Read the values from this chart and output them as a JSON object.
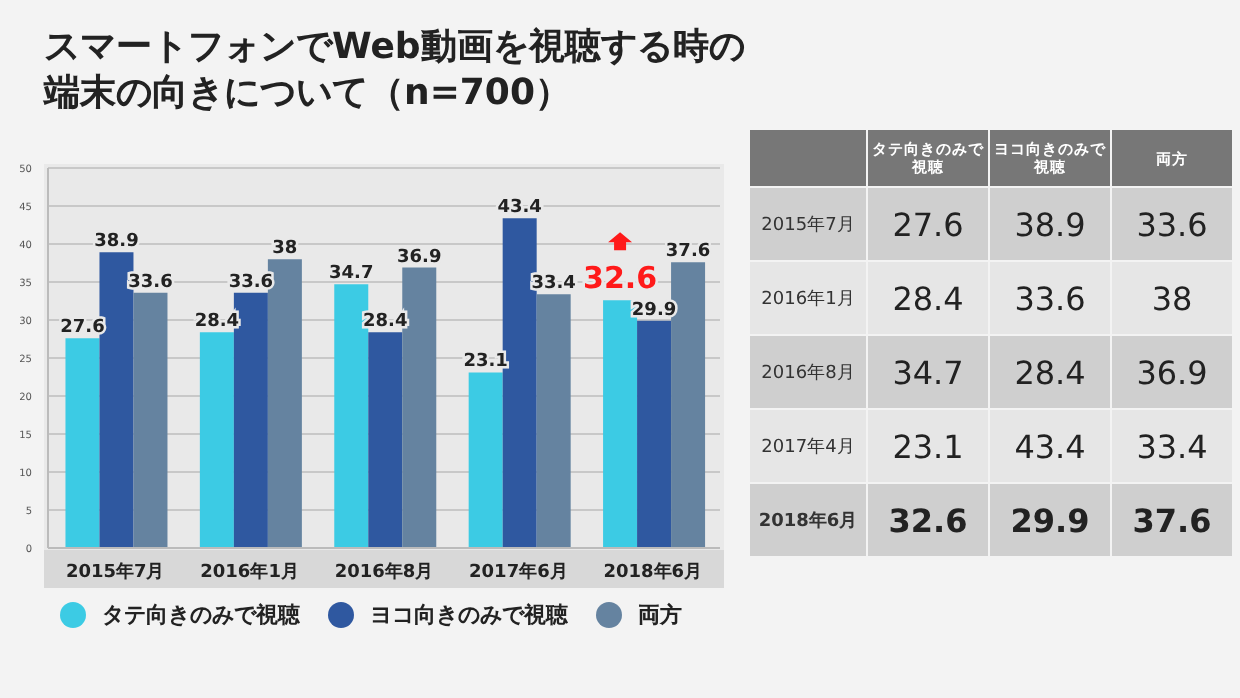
{
  "chart_data": [
    {
      "type": "bar",
      "title": "スマートフォンでWeb動画を視聴する時の端末の向きについて（n=700）",
      "categories": [
        "2015年7月",
        "2016年1月",
        "2016年8月",
        "2017年6月",
        "2018年6月"
      ],
      "series": [
        {
          "name": "タテ向きのみで視聴",
          "color": "#3ccbe4",
          "values": [
            27.6,
            28.4,
            34.7,
            23.1,
            32.6
          ],
          "value_labels": [
            "27.6",
            "28.4",
            "34.7",
            "23.1",
            null
          ]
        },
        {
          "name": "ヨコ向きのみで視聴",
          "color": "#2f58a0",
          "values": [
            38.9,
            33.6,
            28.4,
            43.4,
            29.9
          ],
          "value_labels": [
            "38.9",
            "33.6",
            "28.4",
            "43.4",
            "29.9"
          ]
        },
        {
          "name": "両方",
          "color": "#6583a0",
          "values": [
            33.6,
            38,
            36.9,
            33.4,
            37.6
          ],
          "value_labels": [
            "33.6",
            "38",
            "36.9",
            "33.4",
            "37.6"
          ]
        }
      ],
      "annotations": [
        "32.6"
      ],
      "ylim": [
        0,
        50
      ],
      "yticks": [
        0,
        5,
        10,
        15,
        20,
        25,
        30,
        35,
        40,
        45,
        50
      ],
      "grid": "y",
      "legend": "bottom"
    },
    {
      "type": "other",
      "data_labels": true,
      "categories": [
        "2015年7月",
        "2016年1月",
        "2016年8月",
        "2017年4月",
        "2018年6月"
      ],
      "series": [
        {
          "name": "タテ向きのみで視聴",
          "values": [
            27.6,
            28.4,
            34.7,
            23.1,
            32.6
          ],
          "colors": [
            "#cfcfcf",
            "#e6e6e6",
            "#cfcfcf",
            "#e6e6e6",
            "#cfcfcf"
          ]
        },
        {
          "name": "ヨコ向きのみで視聴",
          "values": [
            38.9,
            33.6,
            28.4,
            43.4,
            29.9
          ],
          "colors": [
            "#cfcfcf",
            "#e6e6e6",
            "#cfcfcf",
            "#e6e6e6",
            "#cfcfcf"
          ]
        },
        {
          "name": "両方",
          "values": [
            33.6,
            38,
            36.9,
            33.4,
            37.6
          ],
          "colors": [
            "#cfcfcf",
            "#e6e6e6",
            "#cfcfcf",
            "#e6e6e6",
            "#cfcfcf"
          ]
        }
      ]
    }
  ]
}
